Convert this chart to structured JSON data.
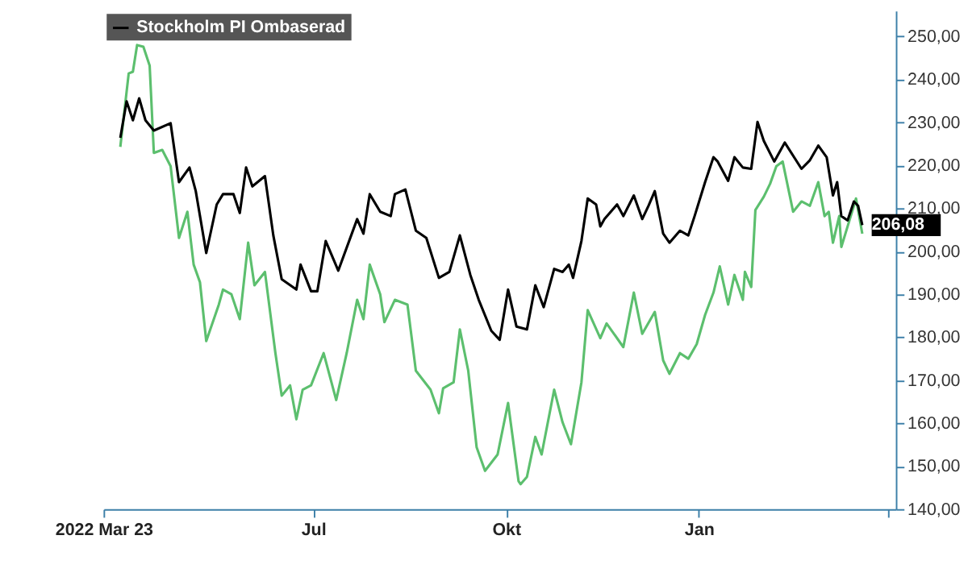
{
  "chart_data": {
    "type": "line",
    "xlim": [
      "2022-03-23",
      "2023-04-05"
    ],
    "xticks": [
      {
        "value": "2022-03-23",
        "label": "2022 Mar 23"
      },
      {
        "value": "2022-07-01",
        "label": "Jul"
      },
      {
        "value": "2022-10-01",
        "label": "Okt"
      },
      {
        "value": "2023-01-01",
        "label": "Jan"
      },
      {
        "value": "2023-04-01",
        "label": null
      }
    ],
    "ylim": [
      140,
      256
    ],
    "yticks": [
      {
        "value": 140,
        "label": "140,00"
      },
      {
        "value": 150,
        "label": "150,00"
      },
      {
        "value": 160,
        "label": "160,00"
      },
      {
        "value": 170,
        "label": "170,00"
      },
      {
        "value": 180,
        "label": "180,00"
      },
      {
        "value": 190,
        "label": "190,00"
      },
      {
        "value": 200,
        "label": "200,00"
      },
      {
        "value": 210,
        "label": "210,00"
      },
      {
        "value": 220,
        "label": "220,00"
      },
      {
        "value": 230,
        "label": "230,00"
      },
      {
        "value": 240,
        "label": "240,00"
      },
      {
        "value": 250,
        "label": "250,00"
      }
    ],
    "grid": false,
    "legend": "top left",
    "annotations": [
      {
        "text": "206,08",
        "x": "2023-03-20",
        "y": 206.08
      }
    ],
    "series": [
      {
        "color": "#5cbf6e",
        "x": [
          "2022-03-31",
          "2022-04-04",
          "2022-04-06",
          "2022-04-08",
          "2022-04-11",
          "2022-04-14",
          "2022-04-16",
          "2022-04-20",
          "2022-04-24",
          "2022-04-28",
          "2022-05-02",
          "2022-05-05",
          "2022-05-08",
          "2022-05-11",
          "2022-05-17",
          "2022-05-19",
          "2022-05-23",
          "2022-05-27",
          "2022-05-31",
          "2022-06-03",
          "2022-06-08",
          "2022-06-13",
          "2022-06-16",
          "2022-06-20",
          "2022-06-23",
          "2022-06-26",
          "2022-06-30",
          "2022-07-06",
          "2022-07-12",
          "2022-07-17",
          "2022-07-22",
          "2022-07-25",
          "2022-07-28",
          "2022-08-02",
          "2022-08-04",
          "2022-08-09",
          "2022-08-15",
          "2022-08-19",
          "2022-08-26",
          "2022-08-30",
          "2022-09-01",
          "2022-09-06",
          "2022-09-09",
          "2022-09-13",
          "2022-09-17",
          "2022-09-21",
          "2022-09-27",
          "2022-10-02",
          "2022-10-07",
          "2022-10-08",
          "2022-10-11",
          "2022-10-15",
          "2022-10-18",
          "2022-10-24",
          "2022-10-28",
          "2022-11-01",
          "2022-11-06",
          "2022-11-09",
          "2022-11-15",
          "2022-11-18",
          "2022-11-26",
          "2022-12-01",
          "2022-12-05",
          "2022-12-11",
          "2022-12-15",
          "2022-12-18",
          "2022-12-23",
          "2022-12-27",
          "2022-12-31",
          "2023-01-04",
          "2023-01-08",
          "2023-01-11",
          "2023-01-15",
          "2023-01-18",
          "2023-01-22",
          "2023-01-23",
          "2023-01-26",
          "2023-01-28",
          "2023-02-01",
          "2023-02-04",
          "2023-02-07",
          "2023-02-10",
          "2023-02-15",
          "2023-02-19",
          "2023-02-23",
          "2023-02-27",
          "2023-03-02",
          "2023-03-04",
          "2023-03-06",
          "2023-03-09",
          "2023-03-10",
          "2023-03-13",
          "2023-03-16",
          "2023-03-17",
          "2023-03-20"
        ],
        "values": [
          224.3,
          241.4,
          241.8,
          248.0,
          247.6,
          243.2,
          222.9,
          223.6,
          219.8,
          203.1,
          209.2,
          196.9,
          192.8,
          179.1,
          187.6,
          191.1,
          190.0,
          184.2,
          202.0,
          192.1,
          195.2,
          176.3,
          166.4,
          168.8,
          160.9,
          167.8,
          168.8,
          176.3,
          165.4,
          176.3,
          188.7,
          184.2,
          196.9,
          190.0,
          183.5,
          188.7,
          187.6,
          172.2,
          167.8,
          162.3,
          168.1,
          169.5,
          181.8,
          172.2,
          154.4,
          148.9,
          152.7,
          164.7,
          146.5,
          145.8,
          147.5,
          156.8,
          152.7,
          167.8,
          160.2,
          155.1,
          169.5,
          186.3,
          179.8,
          183.2,
          177.7,
          190.4,
          180.8,
          185.9,
          174.6,
          171.5,
          176.3,
          175.0,
          178.4,
          185.2,
          190.4,
          196.5,
          187.6,
          194.5,
          188.7,
          195.2,
          191.7,
          209.6,
          212.7,
          215.7,
          219.8,
          220.9,
          209.2,
          211.6,
          210.6,
          216.1,
          208.2,
          209.2,
          202.0,
          208.2,
          201.0,
          205.8,
          210.6,
          212.3,
          204.1
        ]
      },
      {
        "name": "Stockholm PI Ombaserad",
        "color": "#000000",
        "x": [
          "2022-03-31",
          "2022-04-03",
          "2022-04-06",
          "2022-04-09",
          "2022-04-12",
          "2022-04-16",
          "2022-04-24",
          "2022-04-28",
          "2022-05-03",
          "2022-05-06",
          "2022-05-11",
          "2022-05-16",
          "2022-05-19",
          "2022-05-24",
          "2022-05-27",
          "2022-05-30",
          "2022-06-02",
          "2022-06-08",
          "2022-06-12",
          "2022-06-16",
          "2022-06-23",
          "2022-06-25",
          "2022-06-30",
          "2022-07-03",
          "2022-07-07",
          "2022-07-13",
          "2022-07-22",
          "2022-07-25",
          "2022-07-28",
          "2022-08-02",
          "2022-08-07",
          "2022-08-09",
          "2022-08-14",
          "2022-08-19",
          "2022-08-24",
          "2022-08-30",
          "2022-09-04",
          "2022-09-09",
          "2022-09-14",
          "2022-09-18",
          "2022-09-24",
          "2022-09-28",
          "2022-10-02",
          "2022-10-06",
          "2022-10-11",
          "2022-10-15",
          "2022-10-19",
          "2022-10-24",
          "2022-10-28",
          "2022-10-31",
          "2022-11-02",
          "2022-11-06",
          "2022-11-09",
          "2022-11-13",
          "2022-11-15",
          "2022-11-17",
          "2022-11-23",
          "2022-11-26",
          "2022-12-01",
          "2022-12-05",
          "2022-12-08",
          "2022-12-11",
          "2022-12-15",
          "2022-12-18",
          "2022-12-23",
          "2022-12-27",
          "2022-12-30",
          "2023-01-04",
          "2023-01-08",
          "2023-01-10",
          "2023-01-15",
          "2023-01-18",
          "2023-01-22",
          "2023-01-26",
          "2023-01-29",
          "2023-02-01",
          "2023-02-06",
          "2023-02-11",
          "2023-02-19",
          "2023-02-23",
          "2023-02-27",
          "2023-03-03",
          "2023-03-06",
          "2023-03-08",
          "2023-03-10",
          "2023-03-13",
          "2023-03-16",
          "2023-03-18",
          "2023-03-20"
        ],
        "values": [
          226.4,
          234.9,
          230.5,
          235.6,
          230.5,
          228.1,
          229.8,
          216.1,
          219.5,
          214.0,
          199.6,
          210.9,
          213.3,
          213.3,
          208.9,
          219.5,
          215.1,
          217.5,
          203.7,
          193.5,
          191.1,
          196.9,
          190.7,
          190.7,
          202.4,
          195.5,
          207.5,
          204.1,
          213.3,
          209.2,
          208.2,
          213.3,
          214.4,
          204.8,
          203.1,
          193.8,
          195.2,
          203.7,
          194.5,
          188.7,
          181.5,
          179.4,
          191.1,
          182.5,
          181.8,
          192.1,
          187.0,
          195.9,
          195.2,
          196.9,
          193.8,
          202.4,
          212.3,
          210.9,
          205.8,
          207.5,
          210.9,
          208.2,
          213.0,
          207.5,
          210.6,
          214.0,
          204.1,
          202.0,
          204.8,
          203.7,
          208.2,
          216.1,
          221.9,
          220.9,
          216.4,
          221.9,
          219.5,
          219.2,
          230.1,
          225.7,
          220.9,
          225.3,
          219.2,
          221.2,
          224.6,
          221.9,
          213.0,
          216.1,
          208.2,
          207.2,
          211.6,
          210.6,
          206.08
        ]
      }
    ]
  }
}
